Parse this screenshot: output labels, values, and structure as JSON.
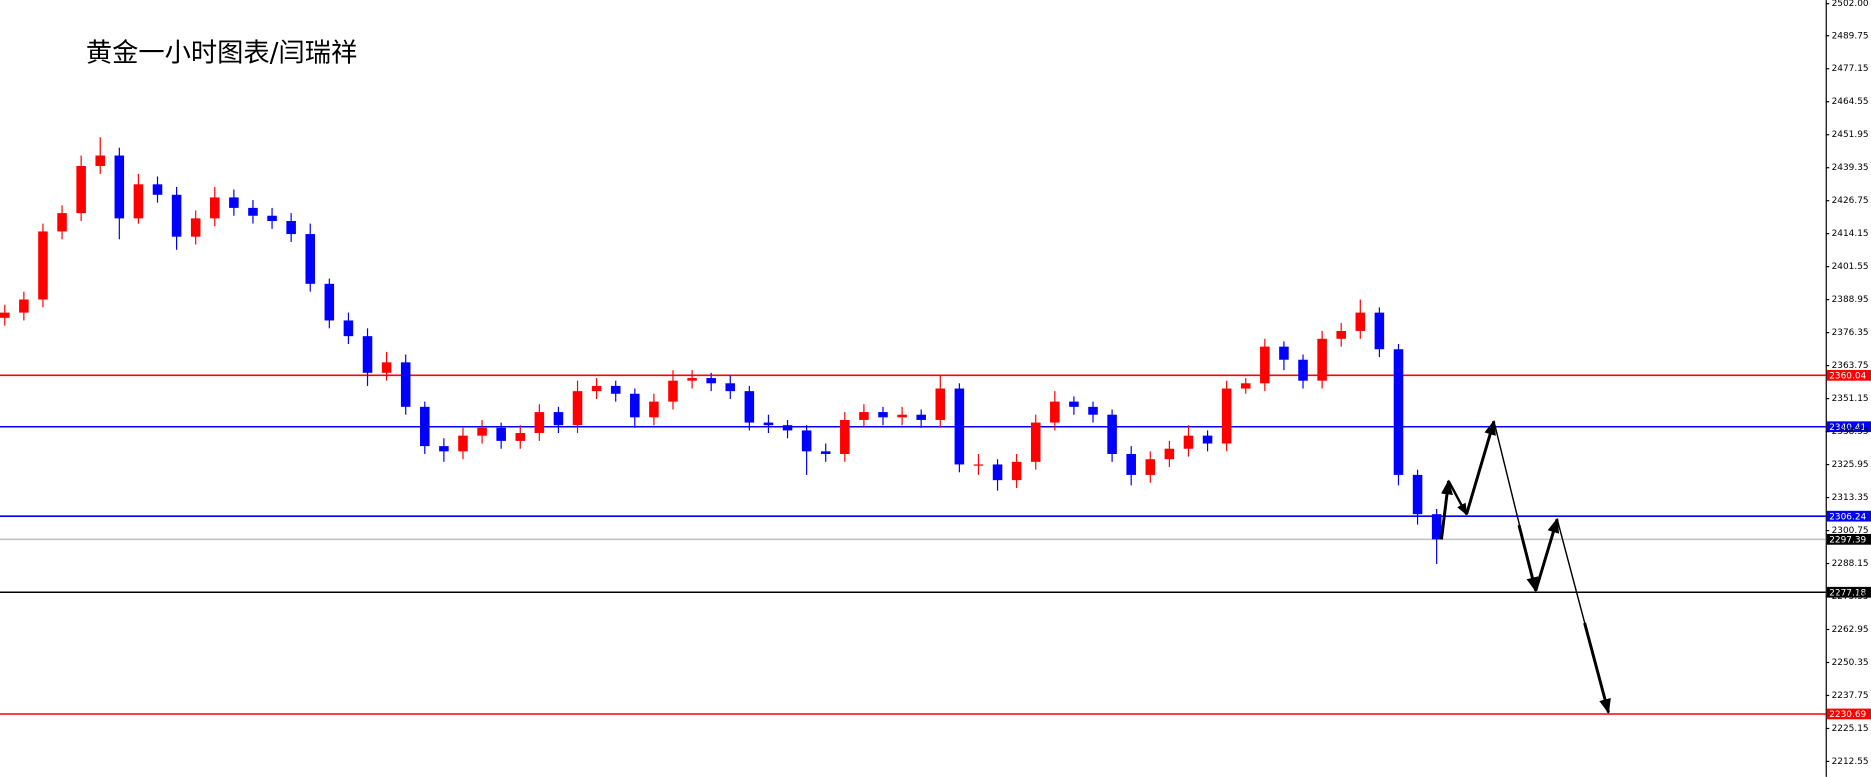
{
  "chart_data": {
    "type": "candlestick",
    "title": "黄金一小时图表/闫瑞祥",
    "up_color": "#ff0000",
    "down_color": "#0000ff",
    "open": [
      2382,
      2384,
      2389,
      2415,
      2422,
      2440,
      2444,
      2420,
      2433,
      2429,
      2413,
      2420,
      2428,
      2424,
      2421,
      2419,
      2414,
      2395,
      2381,
      2375,
      2361,
      2365,
      2348,
      2333,
      2331,
      2337,
      2340,
      2335,
      2338,
      2346,
      2341,
      2354,
      2356,
      2353,
      2344,
      2350,
      2358,
      2359,
      2357,
      2354,
      2342,
      2341,
      2339,
      2331,
      2330,
      2343,
      2346,
      2344,
      2345,
      2343,
      2355,
      2326,
      2326,
      2320,
      2327,
      2342,
      2350,
      2348,
      2345,
      2330,
      2322,
      2328,
      2332,
      2337,
      2334,
      2355,
      2357,
      2371,
      2366,
      2358,
      2374,
      2377,
      2384,
      2370,
      2322,
      2307
    ],
    "high": [
      2387,
      2392,
      2418,
      2425,
      2444,
      2451,
      2447,
      2437,
      2436,
      2432,
      2423,
      2432,
      2431,
      2427,
      2424,
      2422,
      2418,
      2397,
      2384,
      2378,
      2369,
      2368,
      2350,
      2336,
      2340,
      2343,
      2342,
      2341,
      2349,
      2348,
      2358,
      2359,
      2358,
      2355,
      2353,
      2362,
      2362,
      2361,
      2360,
      2356,
      2345,
      2343,
      2341,
      2334,
      2346,
      2349,
      2348,
      2348,
      2347,
      2360,
      2357,
      2330,
      2328,
      2330,
      2345,
      2354,
      2352,
      2350,
      2347,
      2333,
      2331,
      2335,
      2341,
      2339,
      2358,
      2359,
      2374,
      2373,
      2368,
      2377,
      2380,
      2389,
      2386,
      2372,
      2324,
      2309
    ],
    "low": [
      2379,
      2381,
      2386,
      2412,
      2419,
      2437,
      2412,
      2418,
      2426,
      2408,
      2410,
      2417,
      2421,
      2418,
      2416,
      2411,
      2392,
      2378,
      2372,
      2356,
      2358,
      2345,
      2330,
      2327,
      2328,
      2334,
      2332,
      2332,
      2335,
      2338,
      2338,
      2351,
      2350,
      2340,
      2341,
      2347,
      2355,
      2354,
      2351,
      2339,
      2338,
      2336,
      2322,
      2327,
      2327,
      2340,
      2341,
      2341,
      2340,
      2340,
      2323,
      2322,
      2316,
      2317,
      2324,
      2339,
      2345,
      2342,
      2327,
      2318,
      2319,
      2325,
      2329,
      2331,
      2331,
      2353,
      2354,
      2362,
      2355,
      2355,
      2371,
      2374,
      2367,
      2318,
      2303,
      2288
    ],
    "close": [
      2384,
      2389,
      2415,
      2422,
      2440,
      2444,
      2420,
      2433,
      2429,
      2413,
      2420,
      2428,
      2424,
      2421,
      2419,
      2414,
      2395,
      2381,
      2375,
      2361,
      2365,
      2348,
      2333,
      2331,
      2337,
      2340,
      2335,
      2338,
      2346,
      2341,
      2354,
      2356,
      2353,
      2344,
      2350,
      2358,
      2359,
      2357,
      2354,
      2342,
      2341,
      2339,
      2331,
      2330,
      2343,
      2346,
      2344,
      2345,
      2343,
      2355,
      2326,
      2326,
      2320,
      2327,
      2342,
      2350,
      2348,
      2345,
      2330,
      2322,
      2328,
      2332,
      2337,
      2334,
      2355,
      2357,
      2371,
      2366,
      2358,
      2374,
      2377,
      2384,
      2370,
      2322,
      2307,
      2297.39
    ],
    "ylim": [
      2206.65,
      2503.37
    ],
    "yticks": [
      {
        "value": 2502,
        "label": "2502.00"
      },
      2489.75,
      2477.15,
      2464.55,
      2451.95,
      2439.35,
      2426.75,
      2414.15,
      2401.55,
      2388.95,
      2376.35,
      2363.75,
      2351.15,
      2338.55,
      2325.95,
      2313.35,
      2300.75,
      2288.15,
      2275.55,
      2262.95,
      2250.35,
      2237.75,
      2225.15,
      2212.55
    ],
    "levels": [
      {
        "value": 2360.04,
        "color": "#ff0000"
      },
      {
        "value": 2340.41,
        "color": "#0000ff"
      },
      {
        "value": 2306.24,
        "color": "#0000ff"
      },
      {
        "value": 2297.39,
        "color": "#c0c0c0",
        "label_color": "#000000"
      },
      {
        "value": 2277.18,
        "color": "#000000"
      },
      {
        "value": 2230.69,
        "color": "#ff0000"
      }
    ]
  }
}
